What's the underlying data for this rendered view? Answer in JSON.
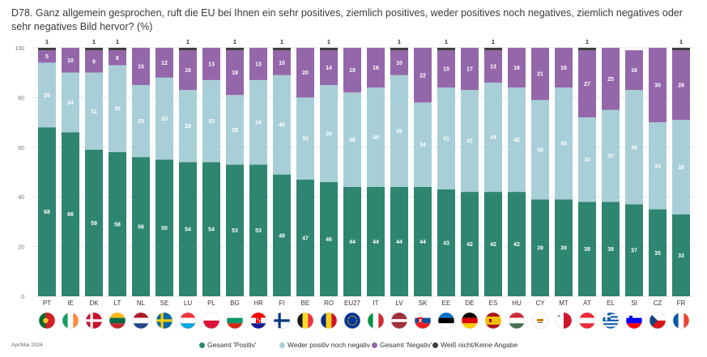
{
  "title": "D78. Ganz allgemein gesprochen, ruft die EU bei Ihnen ein sehr positives, ziemlich positives, weder positives noch negatives, ziemlich negatives oder sehr negatives Bild hervor? (%)",
  "source": "Apr/Mai 2024",
  "colors": {
    "positive": "#2e8570",
    "neutral": "#a8cfd7",
    "negative": "#9467aa",
    "dontknow": "#3f3f3f"
  },
  "chart_data": {
    "type": "bar",
    "stacked": true,
    "ylim": [
      0,
      100
    ],
    "yticks": [
      0,
      20,
      40,
      60,
      80,
      100
    ],
    "categories": [
      "PT",
      "IE",
      "DK",
      "LT",
      "NL",
      "SE",
      "LU",
      "PL",
      "BG",
      "HR",
      "FI",
      "BE",
      "RO",
      "EU27",
      "IT",
      "LV",
      "SK",
      "EE",
      "DE",
      "ES",
      "HU",
      "CY",
      "MT",
      "AT",
      "EL",
      "SI",
      "CZ",
      "FR"
    ],
    "series": [
      {
        "name": "Gesamt 'Positiv'",
        "values": [
          68,
          66,
          59,
          58,
          56,
          55,
          54,
          54,
          53,
          53,
          49,
          47,
          46,
          44,
          44,
          44,
          44,
          43,
          42,
          42,
          42,
          39,
          39,
          38,
          38,
          37,
          35,
          33
        ]
      },
      {
        "name": "Weder positiv noch negativ",
        "values": [
          26,
          24,
          31,
          35,
          29,
          33,
          29,
          33,
          28,
          34,
          40,
          33,
          39,
          38,
          40,
          45,
          34,
          41,
          41,
          44,
          42,
          40,
          45,
          34,
          37,
          46,
          35,
          38
        ]
      },
      {
        "name": "Gesamt 'Negativ'",
        "values": [
          5,
          10,
          9,
          6,
          15,
          12,
          16,
          13,
          18,
          13,
          10,
          20,
          14,
          18,
          16,
          10,
          22,
          15,
          17,
          13,
          16,
          21,
          16,
          27,
          25,
          16,
          30,
          28
        ]
      },
      {
        "name": "Weiß nicht/Keine Angabe",
        "values": [
          1,
          0,
          1,
          1,
          0,
          0,
          1,
          0,
          1,
          0,
          1,
          0,
          1,
          0,
          0,
          1,
          0,
          1,
          0,
          1,
          0,
          0,
          0,
          1,
          0,
          0,
          0,
          1
        ]
      }
    ]
  },
  "flags": [
    {
      "code": "PT",
      "name": "portugal-flag-icon"
    },
    {
      "code": "IE",
      "name": "ireland-flag-icon"
    },
    {
      "code": "DK",
      "name": "denmark-flag-icon"
    },
    {
      "code": "LT",
      "name": "lithuania-flag-icon"
    },
    {
      "code": "NL",
      "name": "netherlands-flag-icon"
    },
    {
      "code": "SE",
      "name": "sweden-flag-icon"
    },
    {
      "code": "LU",
      "name": "luxembourg-flag-icon"
    },
    {
      "code": "PL",
      "name": "poland-flag-icon"
    },
    {
      "code": "BG",
      "name": "bulgaria-flag-icon"
    },
    {
      "code": "HR",
      "name": "croatia-flag-icon"
    },
    {
      "code": "FI",
      "name": "finland-flag-icon"
    },
    {
      "code": "BE",
      "name": "belgium-flag-icon"
    },
    {
      "code": "RO",
      "name": "romania-flag-icon"
    },
    {
      "code": "EU27",
      "name": "eu-flag-icon"
    },
    {
      "code": "IT",
      "name": "italy-flag-icon"
    },
    {
      "code": "LV",
      "name": "latvia-flag-icon"
    },
    {
      "code": "SK",
      "name": "slovakia-flag-icon"
    },
    {
      "code": "EE",
      "name": "estonia-flag-icon"
    },
    {
      "code": "DE",
      "name": "germany-flag-icon"
    },
    {
      "code": "ES",
      "name": "spain-flag-icon"
    },
    {
      "code": "HU",
      "name": "hungary-flag-icon"
    },
    {
      "code": "CY",
      "name": "cyprus-flag-icon"
    },
    {
      "code": "MT",
      "name": "malta-flag-icon"
    },
    {
      "code": "AT",
      "name": "austria-flag-icon"
    },
    {
      "code": "EL",
      "name": "greece-flag-icon"
    },
    {
      "code": "SI",
      "name": "slovenia-flag-icon"
    },
    {
      "code": "CZ",
      "name": "czechia-flag-icon"
    },
    {
      "code": "FR",
      "name": "france-flag-icon"
    }
  ]
}
